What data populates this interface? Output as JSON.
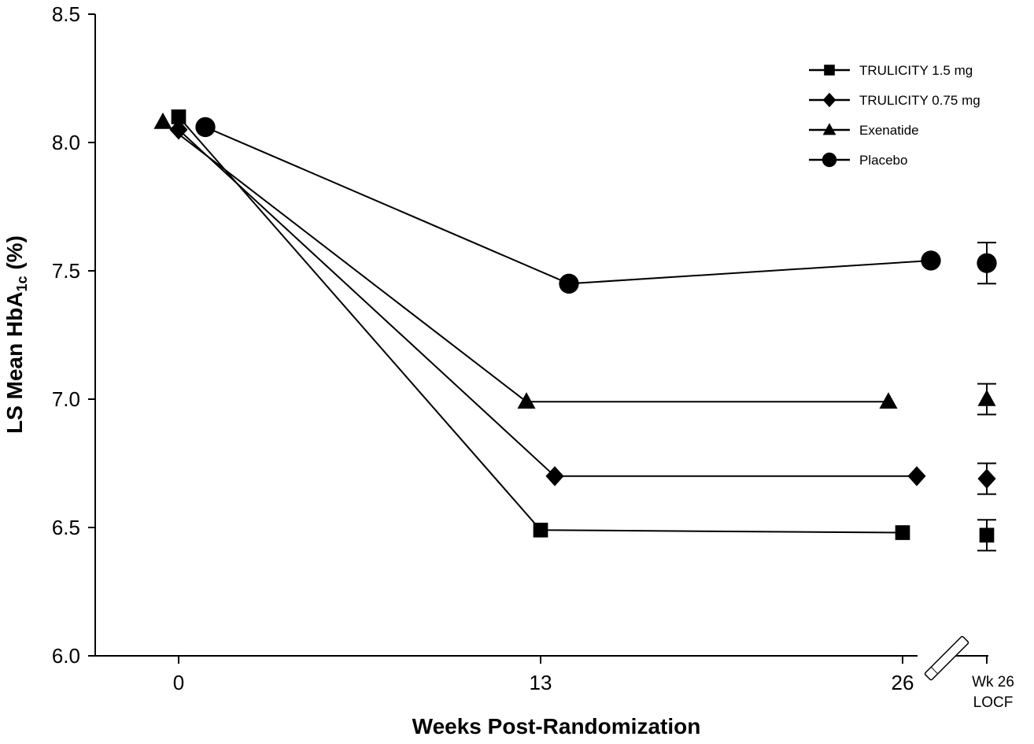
{
  "chart_data": {
    "type": "line",
    "title": "",
    "xlabel": "Weeks Post-Randomization",
    "ylabel": {
      "main": "LS Mean HbA",
      "sub": "1c",
      "suffix": " (%)"
    },
    "ylim": [
      6.0,
      8.5
    ],
    "yticks": [
      "6.0",
      "6.5",
      "7.0",
      "7.5",
      "8.0",
      "8.5"
    ],
    "xticks": [
      "0",
      "13",
      "26"
    ],
    "locf_label": [
      "Wk 26",
      "LOCF"
    ],
    "legend_position": "top-right",
    "series": [
      {
        "name": "TRULICITY 1.5 mg",
        "marker": "square",
        "x": [
          0,
          13,
          26
        ],
        "values": [
          8.1,
          6.49,
          6.48
        ],
        "locf": {
          "value": 6.47,
          "ci": [
            6.41,
            6.53
          ]
        }
      },
      {
        "name": "TRULICITY 0.75 mg",
        "marker": "diamond",
        "x": [
          0,
          13,
          26
        ],
        "values": [
          8.05,
          6.7,
          6.7
        ],
        "locf": {
          "value": 6.69,
          "ci": [
            6.63,
            6.75
          ]
        }
      },
      {
        "name": "Exenatide",
        "marker": "triangle",
        "x": [
          0,
          13,
          26
        ],
        "values": [
          8.08,
          6.99,
          6.99
        ],
        "locf": {
          "value": 7.0,
          "ci": [
            6.94,
            7.06
          ]
        }
      },
      {
        "name": "Placebo",
        "marker": "circle",
        "x": [
          0,
          13,
          26
        ],
        "values": [
          8.06,
          7.45,
          7.54
        ],
        "locf": {
          "value": 7.53,
          "ci": [
            7.45,
            7.61
          ]
        }
      }
    ]
  }
}
